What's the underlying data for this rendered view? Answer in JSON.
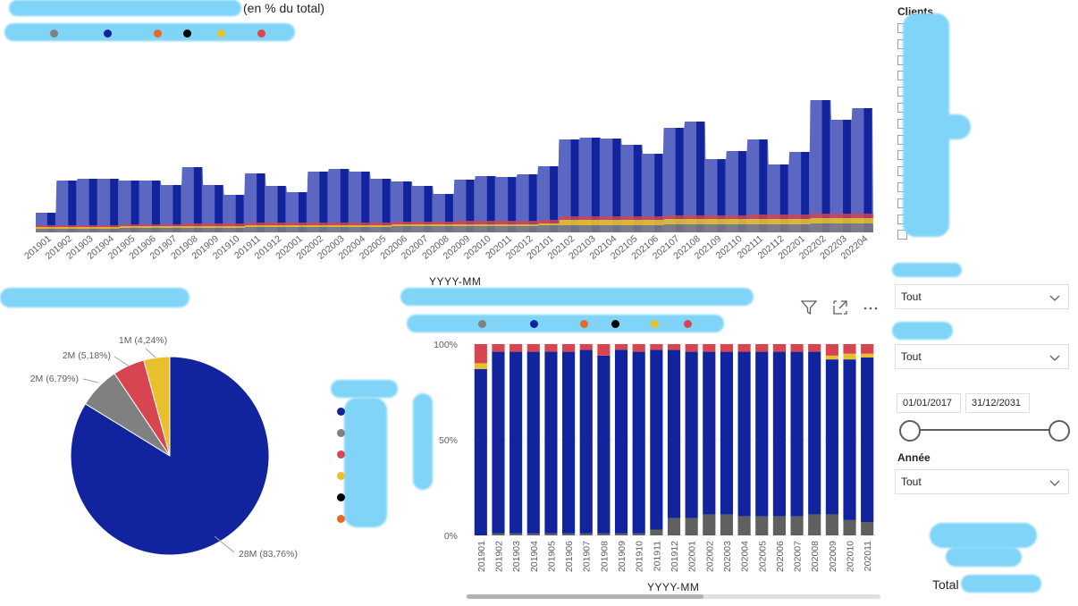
{
  "top_chart": {
    "title_suffix": "(en % du total)",
    "x_axis_title": "YYYY-MM",
    "colors": {
      "series1": "#12239e",
      "series1_area": "#5c67c2",
      "series2": "#808080",
      "series3": "#e8c02e",
      "series4": "#d64550"
    },
    "months": [
      "201901",
      "201902",
      "201903",
      "201904",
      "201905",
      "201906",
      "201907",
      "201908",
      "201909",
      "201910",
      "201911",
      "201912",
      "202001",
      "202002",
      "202003",
      "202004",
      "202005",
      "202006",
      "202007",
      "202008",
      "202009",
      "202010",
      "202011",
      "202012",
      "202101",
      "202102",
      "202103",
      "202104",
      "202105",
      "202106",
      "202107",
      "202108",
      "202109",
      "202110",
      "202111",
      "202112",
      "202201",
      "202202",
      "202203",
      "202204"
    ]
  },
  "pie_chart": {
    "chart_data": {
      "type": "pie",
      "slices": [
        {
          "label": "28M (83,76%)",
          "value": 83.76,
          "color": "#12239e"
        },
        {
          "label": "2M (6,79%)",
          "value": 6.79,
          "color": "#808080"
        },
        {
          "label": "2M (5,18%)",
          "value": 5.18,
          "color": "#d64550"
        },
        {
          "label": "1M (4,24%)",
          "value": 4.24,
          "color": "#e8c02e"
        }
      ]
    }
  },
  "stacked_chart": {
    "x_axis_title": "YYYY-MM",
    "y_ticks": [
      "100%",
      "50%",
      "0%"
    ],
    "chart_data": {
      "type": "bar",
      "stacked": "100%",
      "categories": [
        "201901",
        "201902",
        "201903",
        "201904",
        "201905",
        "201906",
        "201907",
        "201908",
        "201909",
        "201910",
        "201911",
        "201912",
        "202001",
        "202002",
        "202003",
        "202004",
        "202005",
        "202006",
        "202007",
        "202008",
        "202009",
        "202010",
        "202011"
      ],
      "series": [
        {
          "values": [
            0,
            1,
            1,
            1,
            1,
            1,
            1,
            1,
            1,
            1,
            3,
            9,
            9,
            11,
            11,
            10,
            10,
            10,
            10,
            11,
            11,
            8,
            7
          ],
          "color": "#606060"
        },
        {
          "values": [
            87,
            95,
            95,
            95,
            95,
            95,
            96,
            93,
            96,
            95,
            94,
            88,
            87,
            85,
            85,
            86,
            86,
            86,
            86,
            85,
            81,
            84,
            86
          ],
          "color": "#12239e"
        },
        {
          "values": [
            3,
            0,
            0,
            0,
            0,
            0,
            0,
            0,
            0,
            0,
            0,
            0,
            0,
            0,
            0,
            0,
            0,
            0,
            0,
            0,
            2,
            3,
            2
          ],
          "color": "#e8c02e"
        },
        {
          "values": [
            10,
            4,
            4,
            4,
            4,
            4,
            3,
            6,
            3,
            4,
            3,
            3,
            4,
            4,
            4,
            4,
            4,
            4,
            4,
            4,
            6,
            5,
            5
          ],
          "color": "#d64550"
        }
      ],
      "ylim": [
        0,
        100
      ]
    }
  },
  "filters": {
    "clients_title": "Clients",
    "dropdown1_value": "Tout",
    "dropdown2_value": "Tout",
    "date_start": "01/01/2017",
    "date_end": "31/12/2031",
    "annee_title": "Année",
    "annee_value": "Tout",
    "total_label": "Total"
  },
  "icons": {
    "filter": "filter-icon",
    "focus": "focus-mode-icon",
    "more": "more-options-icon",
    "chevron": "chevron-down-icon"
  }
}
